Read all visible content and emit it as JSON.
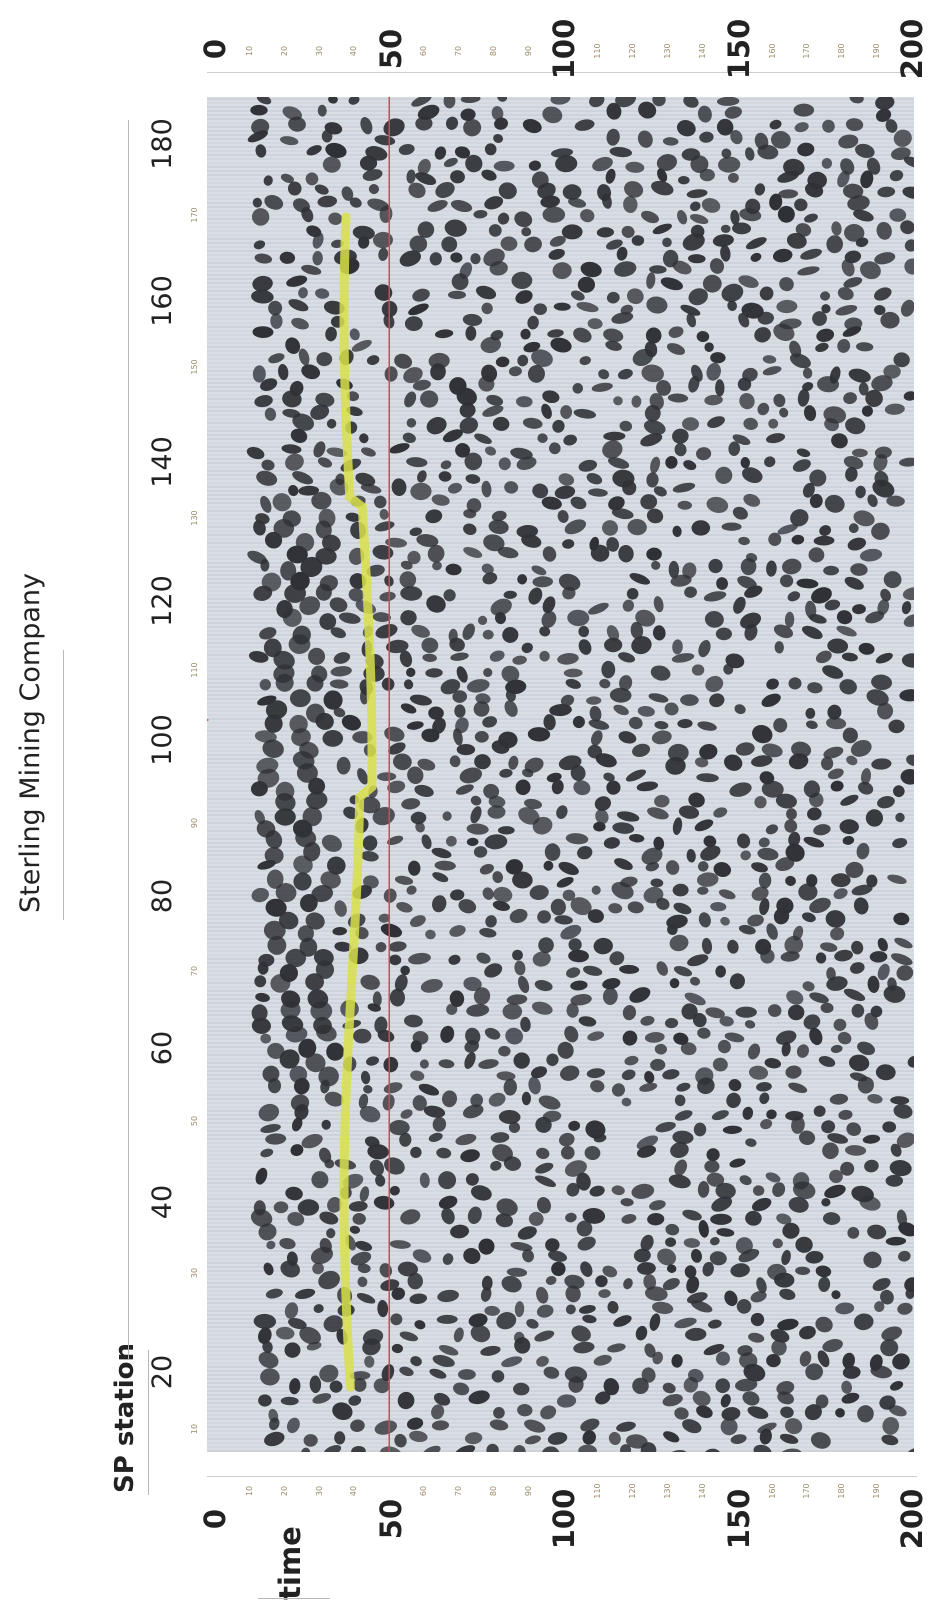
{
  "title": "Sterling Mining Company",
  "station_axis": {
    "name": "SP station",
    "labels": [
      "20",
      "40",
      "60",
      "80",
      "100",
      "120",
      "140",
      "160",
      "180"
    ],
    "minor_labels": [
      "10",
      "30",
      "50",
      "70",
      "90",
      "110",
      "130",
      "150",
      "170"
    ]
  },
  "time_axis": {
    "name": "time",
    "labels": [
      "0",
      "50",
      "100",
      "150",
      "200"
    ],
    "minor_labels": [
      "10",
      "20",
      "30",
      "40",
      "60",
      "70",
      "80",
      "90",
      "110",
      "120",
      "130",
      "140",
      "160",
      "170",
      "180",
      "190"
    ]
  },
  "markers": {
    "reference_line_time": "50",
    "reference_line_color": "#e0405a",
    "picked_horizon_color": "#d8e04a",
    "station_marker_color": "#e0405a"
  },
  "colors": {
    "wiggle_fill": "#2f3136",
    "background_trace": "#d9dde4"
  }
}
